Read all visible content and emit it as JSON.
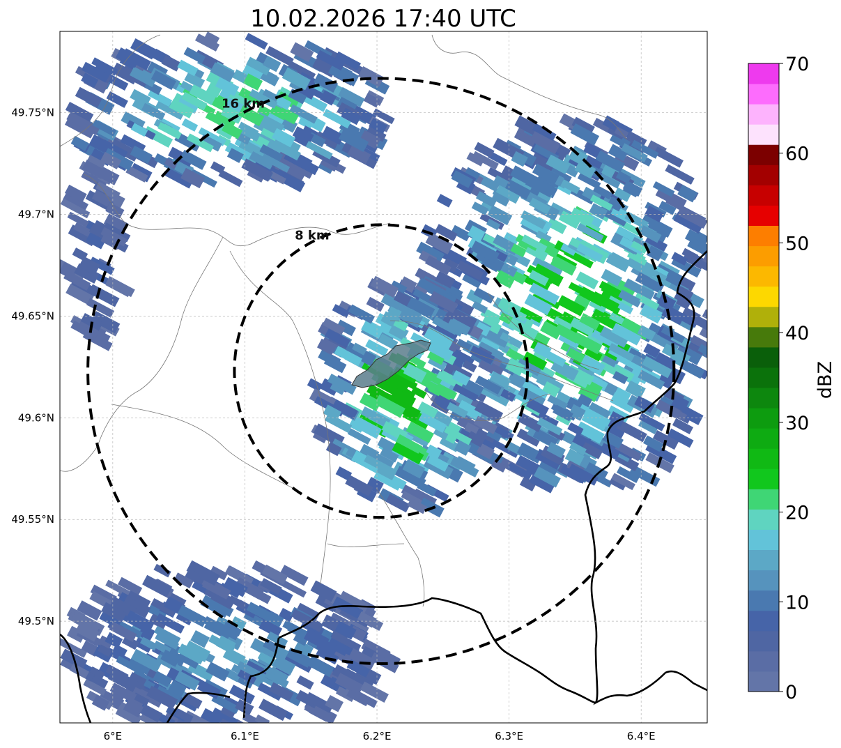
{
  "title": "10.02.2026 17:40 UTC",
  "map": {
    "lon_range": [
      5.96,
      6.45
    ],
    "lat_range": [
      49.45,
      49.79
    ],
    "x_ticks": [
      {
        "lon": 6.0,
        "label": "6°E"
      },
      {
        "lon": 6.1,
        "label": "6.1°E"
      },
      {
        "lon": 6.2,
        "label": "6.2°E"
      },
      {
        "lon": 6.3,
        "label": "6.3°E"
      },
      {
        "lon": 6.4,
        "label": "6.4°E"
      }
    ],
    "y_ticks": [
      {
        "lat": 49.75,
        "label": "49.75°N"
      },
      {
        "lat": 49.7,
        "label": "49.7°N"
      },
      {
        "lat": 49.65,
        "label": "49.65°N"
      },
      {
        "lat": 49.6,
        "label": "49.6°N"
      },
      {
        "lat": 49.55,
        "label": "49.55°N"
      },
      {
        "lat": 49.5,
        "label": "49.5°N"
      }
    ],
    "gridlines": true,
    "center": {
      "lon": 6.203,
      "lat": 49.623
    },
    "range_rings": [
      {
        "radius_km": 8,
        "label": "8 km"
      },
      {
        "radius_km": 16,
        "label": "16 km"
      }
    ],
    "highlight_area_color": "#5b7d8c"
  },
  "colorbar": {
    "label": "dBZ",
    "min": 0,
    "max": 70,
    "ticks": [
      {
        "value": 0,
        "label": "0"
      },
      {
        "value": 10,
        "label": "10"
      },
      {
        "value": 20,
        "label": "20"
      },
      {
        "value": 30,
        "label": "30"
      },
      {
        "value": 40,
        "label": "40"
      },
      {
        "value": 50,
        "label": "50"
      },
      {
        "value": 60,
        "label": "60"
      },
      {
        "value": 70,
        "label": "70"
      }
    ],
    "colors": [
      "#6375a8",
      "#5a6da5",
      "#4f66a3",
      "#4664a8",
      "#4a79b0",
      "#5693bd",
      "#5ca8c6",
      "#62c3d9",
      "#5fd4c0",
      "#3fd675",
      "#11c71d",
      "#10b914",
      "#0eab12",
      "#0d9c0f",
      "#0d870e",
      "#0b720b",
      "#0a5f0a",
      "#477a0b",
      "#b0b00a",
      "#fdd800",
      "#fcb800",
      "#fc9d00",
      "#fd7e00",
      "#e60000",
      "#c70000",
      "#a30000",
      "#7c0000",
      "#fde2fd",
      "#fdb3fd",
      "#fd6cfd",
      "#ee3aee"
    ]
  },
  "chart_data": {
    "type": "heatmap",
    "title": "10.02.2026 17:40 UTC",
    "variable": "radar reflectivity",
    "unit": "dBZ",
    "value_range": [
      0,
      70
    ],
    "echo_regions": [
      {
        "region": "northwest corner",
        "lon": [
          5.96,
          6.2
        ],
        "lat": [
          49.72,
          49.79
        ],
        "dbz": [
          0,
          22
        ]
      },
      {
        "region": "northeast band",
        "lon": [
          6.23,
          6.45
        ],
        "lat": [
          49.57,
          49.75
        ],
        "dbz": [
          0,
          24
        ]
      },
      {
        "region": "central line",
        "lon": [
          6.15,
          6.28
        ],
        "lat": [
          49.56,
          49.67
        ],
        "dbz": [
          0,
          26
        ]
      },
      {
        "region": "southwest corner",
        "lon": [
          5.96,
          6.2
        ],
        "lat": [
          49.45,
          49.53
        ],
        "dbz": [
          0,
          14
        ]
      },
      {
        "region": "west edge",
        "lon": [
          5.96,
          6.0
        ],
        "lat": [
          49.64,
          49.73
        ],
        "dbz": [
          0,
          8
        ]
      }
    ]
  }
}
